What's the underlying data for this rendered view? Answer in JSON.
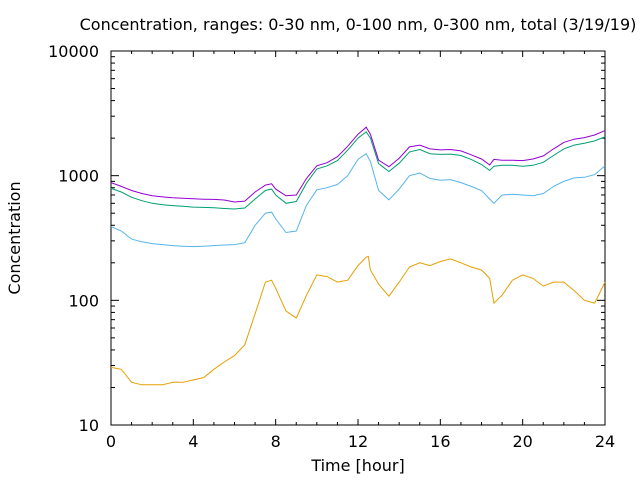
{
  "chart_data": {
    "type": "line",
    "title": "Concentration, ranges: 0-30 nm, 0-100 nm, 0-300 nm, total (3/19/19)",
    "xlabel": "Time [hour]",
    "ylabel": "Concentration",
    "xlim": [
      0,
      24
    ],
    "ylim": [
      10,
      10000
    ],
    "y_scale": "log",
    "x_ticks": [
      0,
      4,
      8,
      12,
      16,
      20,
      24
    ],
    "x_tick_labels": [
      "0",
      "4",
      "8",
      "12",
      "16",
      "20",
      "24"
    ],
    "y_ticks": [
      10,
      100,
      1000,
      10000
    ],
    "y_tick_labels": [
      "10",
      "100",
      "1000",
      "10000"
    ],
    "grid": false,
    "legend": "none",
    "series": [
      {
        "color": "#e69f00",
        "points": [
          [
            0,
            29
          ],
          [
            0.5,
            28
          ],
          [
            1,
            22
          ],
          [
            1.5,
            21
          ],
          [
            2,
            21
          ],
          [
            2.5,
            21
          ],
          [
            3,
            22
          ],
          [
            3.5,
            22
          ],
          [
            4,
            23
          ],
          [
            4.5,
            24
          ],
          [
            5,
            28
          ],
          [
            5.5,
            32
          ],
          [
            6,
            36
          ],
          [
            6.5,
            44
          ],
          [
            7,
            78
          ],
          [
            7.5,
            140
          ],
          [
            7.8,
            145
          ],
          [
            8,
            125
          ],
          [
            8.5,
            82
          ],
          [
            9,
            72
          ],
          [
            9.5,
            110
          ],
          [
            10,
            160
          ],
          [
            10.5,
            155
          ],
          [
            11,
            140
          ],
          [
            11.5,
            145
          ],
          [
            12,
            190
          ],
          [
            12.4,
            222
          ],
          [
            12.5,
            225
          ],
          [
            12.6,
            175
          ],
          [
            13,
            135
          ],
          [
            13.5,
            108
          ],
          [
            14,
            140
          ],
          [
            14.5,
            185
          ],
          [
            15,
            200
          ],
          [
            15.5,
            190
          ],
          [
            16,
            205
          ],
          [
            16.5,
            215
          ],
          [
            17,
            200
          ],
          [
            17.5,
            185
          ],
          [
            18,
            175
          ],
          [
            18.4,
            150
          ],
          [
            18.6,
            95
          ],
          [
            19,
            110
          ],
          [
            19.5,
            145
          ],
          [
            20,
            160
          ],
          [
            20.5,
            150
          ],
          [
            21,
            130
          ],
          [
            21.5,
            140
          ],
          [
            22,
            140
          ],
          [
            22.5,
            120
          ],
          [
            23,
            100
          ],
          [
            23.5,
            95
          ],
          [
            24,
            140
          ]
        ]
      },
      {
        "color": "#56b4e9",
        "points": [
          [
            0,
            390
          ],
          [
            0.5,
            360
          ],
          [
            1,
            310
          ],
          [
            1.5,
            295
          ],
          [
            2,
            285
          ],
          [
            2.5,
            280
          ],
          [
            3,
            275
          ],
          [
            3.5,
            272
          ],
          [
            4,
            270
          ],
          [
            4.5,
            272
          ],
          [
            5,
            275
          ],
          [
            5.5,
            278
          ],
          [
            6,
            280
          ],
          [
            6.5,
            290
          ],
          [
            7,
            400
          ],
          [
            7.5,
            500
          ],
          [
            7.8,
            510
          ],
          [
            8,
            450
          ],
          [
            8.5,
            350
          ],
          [
            9,
            360
          ],
          [
            9.5,
            580
          ],
          [
            10,
            770
          ],
          [
            10.5,
            800
          ],
          [
            11,
            850
          ],
          [
            11.5,
            1000
          ],
          [
            12,
            1350
          ],
          [
            12.4,
            1500
          ],
          [
            12.6,
            1300
          ],
          [
            13,
            760
          ],
          [
            13.5,
            640
          ],
          [
            14,
            780
          ],
          [
            14.5,
            1000
          ],
          [
            15,
            1050
          ],
          [
            15.5,
            950
          ],
          [
            16,
            920
          ],
          [
            16.5,
            930
          ],
          [
            17,
            880
          ],
          [
            17.5,
            820
          ],
          [
            18,
            760
          ],
          [
            18.4,
            650
          ],
          [
            18.6,
            600
          ],
          [
            19,
            700
          ],
          [
            19.5,
            710
          ],
          [
            20,
            700
          ],
          [
            20.5,
            690
          ],
          [
            21,
            720
          ],
          [
            21.5,
            820
          ],
          [
            22,
            900
          ],
          [
            22.5,
            960
          ],
          [
            23,
            970
          ],
          [
            23.5,
            1020
          ],
          [
            24,
            1200
          ]
        ]
      },
      {
        "color": "#009e73",
        "points": [
          [
            0,
            790
          ],
          [
            0.5,
            740
          ],
          [
            1,
            670
          ],
          [
            1.5,
            630
          ],
          [
            2,
            600
          ],
          [
            2.5,
            585
          ],
          [
            3,
            575
          ],
          [
            3.5,
            568
          ],
          [
            4,
            560
          ],
          [
            4.5,
            556
          ],
          [
            5,
            552
          ],
          [
            5.5,
            545
          ],
          [
            6,
            540
          ],
          [
            6.5,
            550
          ],
          [
            7,
            650
          ],
          [
            7.5,
            760
          ],
          [
            7.8,
            780
          ],
          [
            8,
            700
          ],
          [
            8.5,
            600
          ],
          [
            9,
            620
          ],
          [
            9.5,
            870
          ],
          [
            10,
            1130
          ],
          [
            10.5,
            1200
          ],
          [
            11,
            1320
          ],
          [
            11.5,
            1600
          ],
          [
            12,
            2000
          ],
          [
            12.4,
            2250
          ],
          [
            12.6,
            2000
          ],
          [
            13,
            1250
          ],
          [
            13.5,
            1080
          ],
          [
            14,
            1260
          ],
          [
            14.5,
            1550
          ],
          [
            15,
            1620
          ],
          [
            15.5,
            1500
          ],
          [
            16,
            1480
          ],
          [
            16.5,
            1490
          ],
          [
            17,
            1450
          ],
          [
            17.5,
            1350
          ],
          [
            18,
            1230
          ],
          [
            18.4,
            1100
          ],
          [
            18.6,
            1190
          ],
          [
            19,
            1210
          ],
          [
            19.5,
            1210
          ],
          [
            20,
            1190
          ],
          [
            20.5,
            1210
          ],
          [
            21,
            1280
          ],
          [
            21.5,
            1450
          ],
          [
            22,
            1640
          ],
          [
            22.5,
            1760
          ],
          [
            23,
            1820
          ],
          [
            23.5,
            1900
          ],
          [
            24,
            2050
          ]
        ]
      },
      {
        "color": "#9400d3",
        "points": [
          [
            0,
            880
          ],
          [
            0.5,
            820
          ],
          [
            1,
            760
          ],
          [
            1.5,
            720
          ],
          [
            2,
            690
          ],
          [
            2.5,
            675
          ],
          [
            3,
            665
          ],
          [
            3.5,
            660
          ],
          [
            4,
            652
          ],
          [
            4.5,
            648
          ],
          [
            5,
            645
          ],
          [
            5.5,
            638
          ],
          [
            6,
            615
          ],
          [
            6.5,
            625
          ],
          [
            7,
            740
          ],
          [
            7.5,
            840
          ],
          [
            7.8,
            860
          ],
          [
            8,
            780
          ],
          [
            8.5,
            690
          ],
          [
            9,
            700
          ],
          [
            9.5,
            950
          ],
          [
            10,
            1200
          ],
          [
            10.5,
            1270
          ],
          [
            11,
            1420
          ],
          [
            11.5,
            1720
          ],
          [
            12,
            2150
          ],
          [
            12.4,
            2450
          ],
          [
            12.6,
            2150
          ],
          [
            13,
            1330
          ],
          [
            13.5,
            1180
          ],
          [
            14,
            1380
          ],
          [
            14.5,
            1700
          ],
          [
            15,
            1760
          ],
          [
            15.5,
            1640
          ],
          [
            16,
            1610
          ],
          [
            16.5,
            1620
          ],
          [
            17,
            1580
          ],
          [
            17.5,
            1470
          ],
          [
            18,
            1360
          ],
          [
            18.4,
            1220
          ],
          [
            18.6,
            1350
          ],
          [
            19,
            1330
          ],
          [
            19.5,
            1330
          ],
          [
            20,
            1320
          ],
          [
            20.5,
            1360
          ],
          [
            21,
            1440
          ],
          [
            21.5,
            1640
          ],
          [
            22,
            1850
          ],
          [
            22.5,
            1960
          ],
          [
            23,
            2020
          ],
          [
            23.5,
            2120
          ],
          [
            24,
            2300
          ]
        ]
      }
    ]
  }
}
